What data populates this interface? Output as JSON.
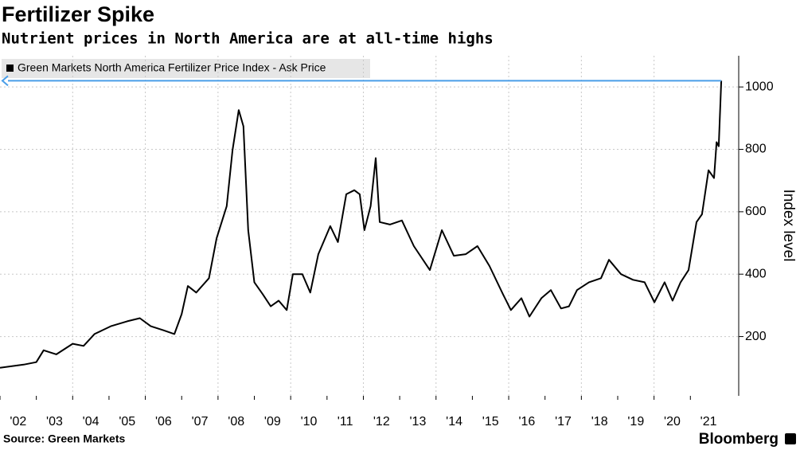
{
  "chart_data": {
    "type": "line",
    "title": "Fertilizer Spike",
    "subtitle": "Nutrient prices in North America are at all-time highs",
    "source": "Source: Green Markets",
    "brand": "Bloomberg",
    "y_label": "Index level",
    "x": [
      2002.0,
      2002.65,
      2003.0,
      2003.2,
      2003.55,
      2004.0,
      2004.3,
      2004.6,
      2005.05,
      2005.5,
      2005.85,
      2006.15,
      2006.5,
      2006.8,
      2007.0,
      2007.17,
      2007.4,
      2007.75,
      2007.96,
      2008.24,
      2008.4,
      2008.57,
      2008.7,
      2008.83,
      2009.0,
      2009.23,
      2009.45,
      2009.67,
      2009.89,
      2010.06,
      2010.32,
      2010.54,
      2010.76,
      2011.09,
      2011.3,
      2011.53,
      2011.75,
      2011.9,
      2012.03,
      2012.2,
      2012.34,
      2012.45,
      2012.73,
      2013.06,
      2013.39,
      2013.83,
      2014.16,
      2014.49,
      2014.82,
      2015.14,
      2015.47,
      2015.84,
      2016.06,
      2016.35,
      2016.57,
      2016.9,
      2017.16,
      2017.44,
      2017.66,
      2017.88,
      2018.21,
      2018.54,
      2018.76,
      2019.09,
      2019.42,
      2019.74,
      2020.01,
      2020.29,
      2020.51,
      2020.73,
      2020.95,
      2021.17,
      2021.32,
      2021.5,
      2021.65,
      2021.72,
      2021.78,
      2021.85
    ],
    "series": [
      {
        "name": "Green Markets North America Fertilizer Price Index - Ask Price",
        "color": "#000000",
        "values": [
          100,
          110,
          118,
          156,
          143,
          177,
          170,
          208,
          233,
          249,
          259,
          233,
          220,
          208,
          272,
          362,
          341,
          387,
          515,
          618,
          797,
          926,
          874,
          541,
          374,
          336,
          297,
          315,
          285,
          400,
          400,
          341,
          464,
          554,
          503,
          656,
          669,
          656,
          541,
          618,
          772,
          567,
          559,
          572,
          490,
          413,
          541,
          459,
          464,
          490,
          426,
          336,
          285,
          323,
          264,
          323,
          349,
          290,
          297,
          349,
          374,
          387,
          446,
          400,
          382,
          374,
          310,
          374,
          315,
          374,
          413,
          567,
          592,
          733,
          708,
          823,
          810,
          1020
        ]
      }
    ],
    "xlim": [
      2002,
      2022.33
    ],
    "xticks": [
      {
        "value": 2002,
        "label": "'02"
      },
      {
        "value": 2003,
        "label": "'03"
      },
      {
        "value": 2004,
        "label": "'04"
      },
      {
        "value": 2005,
        "label": "'05"
      },
      {
        "value": 2006,
        "label": "'06"
      },
      {
        "value": 2007,
        "label": "'07"
      },
      {
        "value": 2008,
        "label": "'08"
      },
      {
        "value": 2009,
        "label": "'09"
      },
      {
        "value": 2010,
        "label": "'10"
      },
      {
        "value": 2011,
        "label": "'11"
      },
      {
        "value": 2012,
        "label": "'12"
      },
      {
        "value": 2013,
        "label": "'13"
      },
      {
        "value": 2014,
        "label": "'14"
      },
      {
        "value": 2015,
        "label": "'15"
      },
      {
        "value": 2016,
        "label": "'16"
      },
      {
        "value": 2017,
        "label": "'17"
      },
      {
        "value": 2018,
        "label": "'18"
      },
      {
        "value": 2019,
        "label": "'19"
      },
      {
        "value": 2020,
        "label": "'20"
      },
      {
        "value": 2021,
        "label": "'21"
      }
    ],
    "ylim": [
      10,
      1100
    ],
    "yticks": [
      200,
      400,
      600,
      800,
      1000
    ],
    "grid": true,
    "annotation_color": "#4a9ee8"
  }
}
